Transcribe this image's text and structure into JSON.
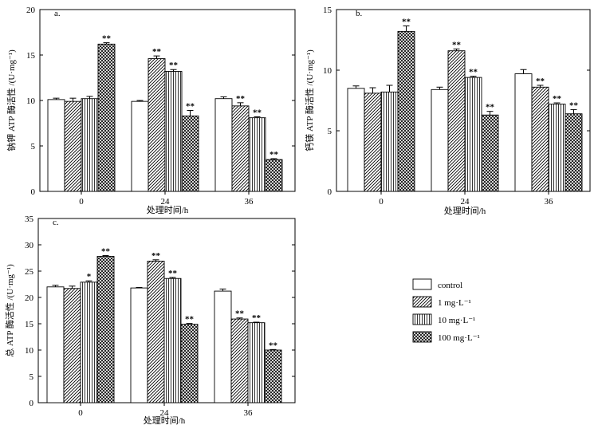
{
  "chart_data": [
    {
      "id": "a",
      "type": "bar",
      "panel_label": "a.",
      "categories": [
        "0",
        "24",
        "36"
      ],
      "series": [
        {
          "name": "control",
          "values": [
            10.1,
            9.9,
            10.2
          ],
          "errors": [
            0.15,
            0.1,
            0.2
          ],
          "stars": [
            "",
            "",
            ""
          ]
        },
        {
          "name": "1 mg·L⁻¹",
          "values": [
            9.9,
            14.6,
            9.4
          ],
          "errors": [
            0.35,
            0.3,
            0.35
          ],
          "stars": [
            "",
            "**",
            "**"
          ]
        },
        {
          "name": "10 mg·L⁻¹",
          "values": [
            10.2,
            13.2,
            8.1
          ],
          "errors": [
            0.25,
            0.2,
            0.1
          ],
          "stars": [
            "",
            "**",
            "**"
          ]
        },
        {
          "name": "100 mg·L⁻¹",
          "values": [
            16.2,
            8.3,
            3.5
          ],
          "errors": [
            0.15,
            0.6,
            0.1
          ],
          "stars": [
            "**",
            "**",
            "**"
          ]
        }
      ],
      "ylabel": "钠钾 ATP 酶活性 /(U·mg⁻¹)",
      "xlabel": "处理时间/h",
      "ylim": [
        0,
        20
      ],
      "yticks": [
        "0",
        "5",
        "10",
        "15",
        "20"
      ]
    },
    {
      "id": "b",
      "type": "bar",
      "panel_label": "b.",
      "categories": [
        "0",
        "24",
        "36"
      ],
      "series": [
        {
          "name": "control",
          "values": [
            8.5,
            8.4,
            9.7
          ],
          "errors": [
            0.2,
            0.2,
            0.35
          ],
          "stars": [
            "",
            "",
            ""
          ]
        },
        {
          "name": "1 mg·L⁻¹",
          "values": [
            8.1,
            11.6,
            8.6
          ],
          "errors": [
            0.45,
            0.15,
            0.15
          ],
          "stars": [
            "",
            "**",
            "**"
          ]
        },
        {
          "name": "10 mg·L⁻¹",
          "values": [
            8.2,
            9.4,
            7.2
          ],
          "errors": [
            0.55,
            0.1,
            0.1
          ],
          "stars": [
            "",
            "**",
            "**"
          ]
        },
        {
          "name": "100 mg·L⁻¹",
          "values": [
            13.2,
            6.3,
            6.4
          ],
          "errors": [
            0.45,
            0.3,
            0.35
          ],
          "stars": [
            "**",
            "**",
            "**"
          ]
        }
      ],
      "ylabel": "钙镁 ATP 酶活性 /(U·mg⁻¹)",
      "xlabel": "处理时间/h",
      "ylim": [
        0,
        15
      ],
      "yticks": [
        "0",
        "5",
        "10",
        "15"
      ]
    },
    {
      "id": "c",
      "type": "bar",
      "panel_label": "c.",
      "categories": [
        "0",
        "24",
        "36"
      ],
      "series": [
        {
          "name": "control",
          "values": [
            22.0,
            21.8,
            21.2
          ],
          "errors": [
            0.3,
            0.1,
            0.4
          ],
          "stars": [
            "",
            "",
            ""
          ]
        },
        {
          "name": "1 mg·L⁻¹",
          "values": [
            21.7,
            26.9,
            15.9
          ],
          "errors": [
            0.45,
            0.25,
            0.2
          ],
          "stars": [
            "",
            "**",
            "**"
          ]
        },
        {
          "name": "10 mg·L⁻¹",
          "values": [
            22.9,
            23.6,
            15.2
          ],
          "errors": [
            0.25,
            0.2,
            0.1
          ],
          "stars": [
            "*",
            "**",
            "**"
          ]
        },
        {
          "name": "100 mg·L⁻¹",
          "values": [
            27.8,
            14.9,
            10.0
          ],
          "errors": [
            0.15,
            0.15,
            0.1
          ],
          "stars": [
            "**",
            "**",
            "**"
          ]
        }
      ],
      "ylabel": "总 ATP 酶活性 /(U·mg⁻¹)",
      "xlabel": "处理时间/h",
      "ylim": [
        0,
        35
      ],
      "yticks": [
        "0",
        "5",
        "10",
        "15",
        "20",
        "25",
        "30",
        "35"
      ]
    }
  ],
  "legend": {
    "entries": [
      "control",
      "1 mg·L⁻¹",
      "10 mg·L⁻¹",
      "100 mg·L⁻¹"
    ],
    "patterns": [
      "blank",
      "diagonal",
      "vertical",
      "crosshatch"
    ]
  },
  "colors": {
    "ink": "#000000",
    "fill": "#ffffff"
  }
}
